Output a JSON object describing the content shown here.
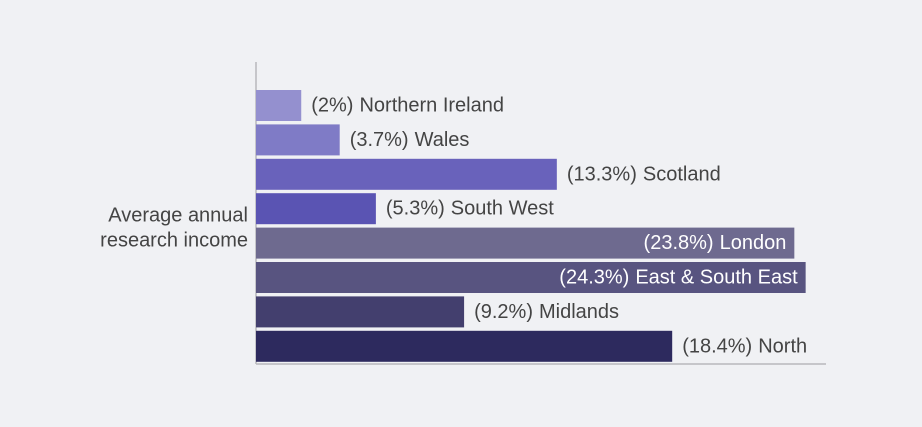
{
  "chart_data": {
    "type": "bar",
    "orientation": "horizontal",
    "ylabel": [
      "Average annual",
      "research income"
    ],
    "categories": [
      "Northern Ireland",
      "Wales",
      "Scotland",
      "South West",
      "London",
      "East & South East",
      "Midlands",
      "North"
    ],
    "values": [
      2,
      3.7,
      13.3,
      5.3,
      23.8,
      24.3,
      9.2,
      18.4
    ],
    "value_labels": [
      "(2%)",
      "(3.7%)",
      "(13.3%)",
      "(5.3%)",
      "(23.8%)",
      "(24.3%)",
      "(9.2%)",
      "(18.4%)"
    ],
    "colors": [
      "#9490cf",
      "#7f7bc6",
      "#6962bb",
      "#5a54b3",
      "#6e6a8f",
      "#585480",
      "#433f6e",
      "#2d2a5e"
    ],
    "xlim": [
      0,
      25.2
    ],
    "grid": false
  }
}
